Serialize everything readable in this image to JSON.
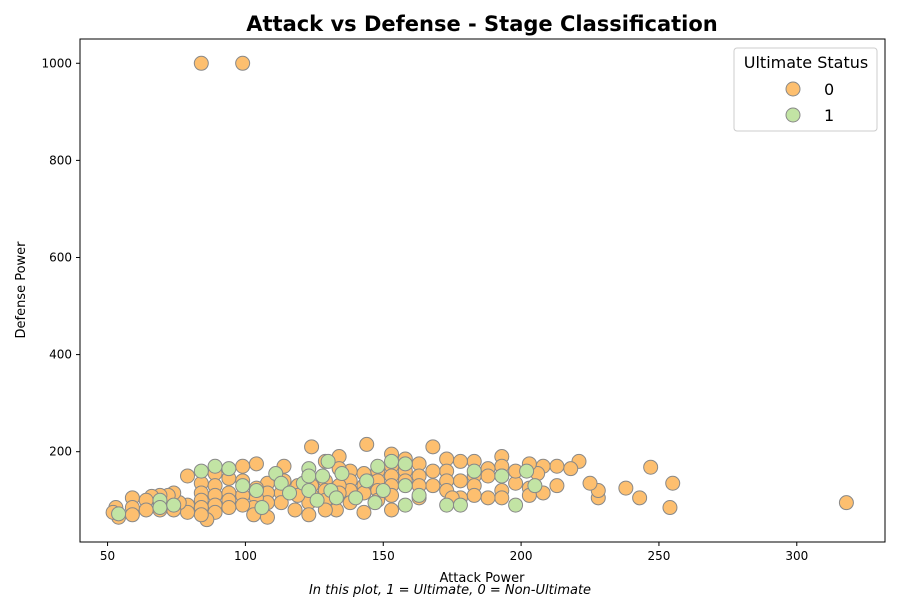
{
  "chart_data": {
    "type": "scatter",
    "title": "Attack vs Defense - Stage Classification",
    "xlabel": "Attack Power",
    "ylabel": "Defense Power",
    "caption": "In this plot, 1 = Ultimate, 0 = Non-Ultimate",
    "xlim": [
      40,
      332
    ],
    "ylim": [
      14,
      1050
    ],
    "xticks": [
      50,
      100,
      150,
      200,
      250,
      300
    ],
    "yticks": [
      200,
      400,
      600,
      800,
      1000
    ],
    "grid": false,
    "legend": {
      "title": "Ultimate Status",
      "position": "top-right",
      "entries": [
        {
          "label": "0",
          "color": "#fdbf6f"
        },
        {
          "label": "1",
          "color": "#c2e4a4"
        }
      ]
    },
    "marker_edge_color": "#888888",
    "series": [
      {
        "name": "0",
        "color": "#fdbf6f",
        "points": [
          [
            84,
            1000
          ],
          [
            99,
            1000
          ],
          [
            318,
            95
          ],
          [
            254,
            85
          ],
          [
            255,
            135
          ],
          [
            247,
            168
          ],
          [
            243,
            105
          ],
          [
            238,
            125
          ],
          [
            228,
            105
          ],
          [
            228,
            120
          ],
          [
            225,
            135
          ],
          [
            221,
            180
          ],
          [
            218,
            165
          ],
          [
            213,
            170
          ],
          [
            213,
            130
          ],
          [
            208,
            170
          ],
          [
            208,
            115
          ],
          [
            206,
            155
          ],
          [
            203,
            175
          ],
          [
            203,
            125
          ],
          [
            203,
            110
          ],
          [
            198,
            135
          ],
          [
            198,
            160
          ],
          [
            193,
            190
          ],
          [
            193,
            170
          ],
          [
            193,
            150
          ],
          [
            193,
            120
          ],
          [
            193,
            105
          ],
          [
            188,
            165
          ],
          [
            188,
            150
          ],
          [
            188,
            105
          ],
          [
            183,
            180
          ],
          [
            183,
            150
          ],
          [
            183,
            130
          ],
          [
            183,
            110
          ],
          [
            178,
            180
          ],
          [
            178,
            140
          ],
          [
            178,
            105
          ],
          [
            173,
            185
          ],
          [
            173,
            160
          ],
          [
            173,
            140
          ],
          [
            173,
            120
          ],
          [
            175,
            105
          ],
          [
            168,
            210
          ],
          [
            168,
            160
          ],
          [
            168,
            130
          ],
          [
            163,
            175
          ],
          [
            163,
            150
          ],
          [
            163,
            130
          ],
          [
            163,
            105
          ],
          [
            158,
            185
          ],
          [
            158,
            160
          ],
          [
            158,
            140
          ],
          [
            153,
            195
          ],
          [
            153,
            170
          ],
          [
            153,
            150
          ],
          [
            153,
            130
          ],
          [
            153,
            110
          ],
          [
            153,
            80
          ],
          [
            148,
            160
          ],
          [
            148,
            140
          ],
          [
            148,
            120
          ],
          [
            148,
            100
          ],
          [
            144,
            215
          ],
          [
            143,
            155
          ],
          [
            143,
            130
          ],
          [
            143,
            115
          ],
          [
            143,
            75
          ],
          [
            138,
            160
          ],
          [
            138,
            140
          ],
          [
            138,
            120
          ],
          [
            138,
            95
          ],
          [
            134,
            190
          ],
          [
            134,
            165
          ],
          [
            134,
            130
          ],
          [
            134,
            115
          ],
          [
            133,
            80
          ],
          [
            129,
            180
          ],
          [
            129,
            140
          ],
          [
            129,
            120
          ],
          [
            129,
            100
          ],
          [
            129,
            80
          ],
          [
            124,
            210
          ],
          [
            124,
            130
          ],
          [
            124,
            110
          ],
          [
            123,
            95
          ],
          [
            123,
            70
          ],
          [
            119,
            130
          ],
          [
            119,
            110
          ],
          [
            118,
            80
          ],
          [
            114,
            170
          ],
          [
            114,
            140
          ],
          [
            113,
            115
          ],
          [
            113,
            95
          ],
          [
            108,
            135
          ],
          [
            108,
            115
          ],
          [
            108,
            95
          ],
          [
            108,
            65
          ],
          [
            104,
            175
          ],
          [
            104,
            125
          ],
          [
            104,
            105
          ],
          [
            103,
            85
          ],
          [
            103,
            70
          ],
          [
            99,
            170
          ],
          [
            99,
            140
          ],
          [
            99,
            110
          ],
          [
            99,
            90
          ],
          [
            94,
            145
          ],
          [
            94,
            115
          ],
          [
            94,
            100
          ],
          [
            94,
            85
          ],
          [
            89,
            155
          ],
          [
            89,
            130
          ],
          [
            89,
            110
          ],
          [
            89,
            90
          ],
          [
            89,
            75
          ],
          [
            86,
            60
          ],
          [
            84,
            135
          ],
          [
            84,
            115
          ],
          [
            84,
            100
          ],
          [
            84,
            85
          ],
          [
            84,
            70
          ],
          [
            79,
            150
          ],
          [
            79,
            90
          ],
          [
            79,
            75
          ],
          [
            76,
            95
          ],
          [
            74,
            115
          ],
          [
            74,
            80
          ],
          [
            72,
            110
          ],
          [
            69,
            110
          ],
          [
            69,
            90
          ],
          [
            69,
            80
          ],
          [
            66,
            108
          ],
          [
            64,
            100
          ],
          [
            64,
            80
          ],
          [
            59,
            105
          ],
          [
            59,
            85
          ],
          [
            59,
            70
          ],
          [
            54,
            65
          ],
          [
            53,
            85
          ],
          [
            52,
            75
          ]
        ]
      },
      {
        "name": "1",
        "color": "#c2e4a4",
        "points": [
          [
            84,
            160
          ],
          [
            89,
            170
          ],
          [
            94,
            165
          ],
          [
            99,
            130
          ],
          [
            104,
            120
          ],
          [
            106,
            85
          ],
          [
            111,
            155
          ],
          [
            113,
            135
          ],
          [
            116,
            115
          ],
          [
            121,
            135
          ],
          [
            123,
            165
          ],
          [
            123,
            150
          ],
          [
            123,
            120
          ],
          [
            126,
            100
          ],
          [
            128,
            150
          ],
          [
            130,
            180
          ],
          [
            131,
            120
          ],
          [
            133,
            105
          ],
          [
            135,
            155
          ],
          [
            140,
            105
          ],
          [
            144,
            140
          ],
          [
            147,
            95
          ],
          [
            148,
            170
          ],
          [
            150,
            120
          ],
          [
            153,
            180
          ],
          [
            158,
            175
          ],
          [
            158,
            130
          ],
          [
            158,
            90
          ],
          [
            163,
            110
          ],
          [
            173,
            90
          ],
          [
            178,
            90
          ],
          [
            183,
            160
          ],
          [
            193,
            150
          ],
          [
            198,
            90
          ],
          [
            202,
            160
          ],
          [
            205,
            130
          ],
          [
            69,
            100
          ],
          [
            69,
            85
          ],
          [
            74,
            90
          ],
          [
            54,
            72
          ]
        ]
      }
    ]
  }
}
